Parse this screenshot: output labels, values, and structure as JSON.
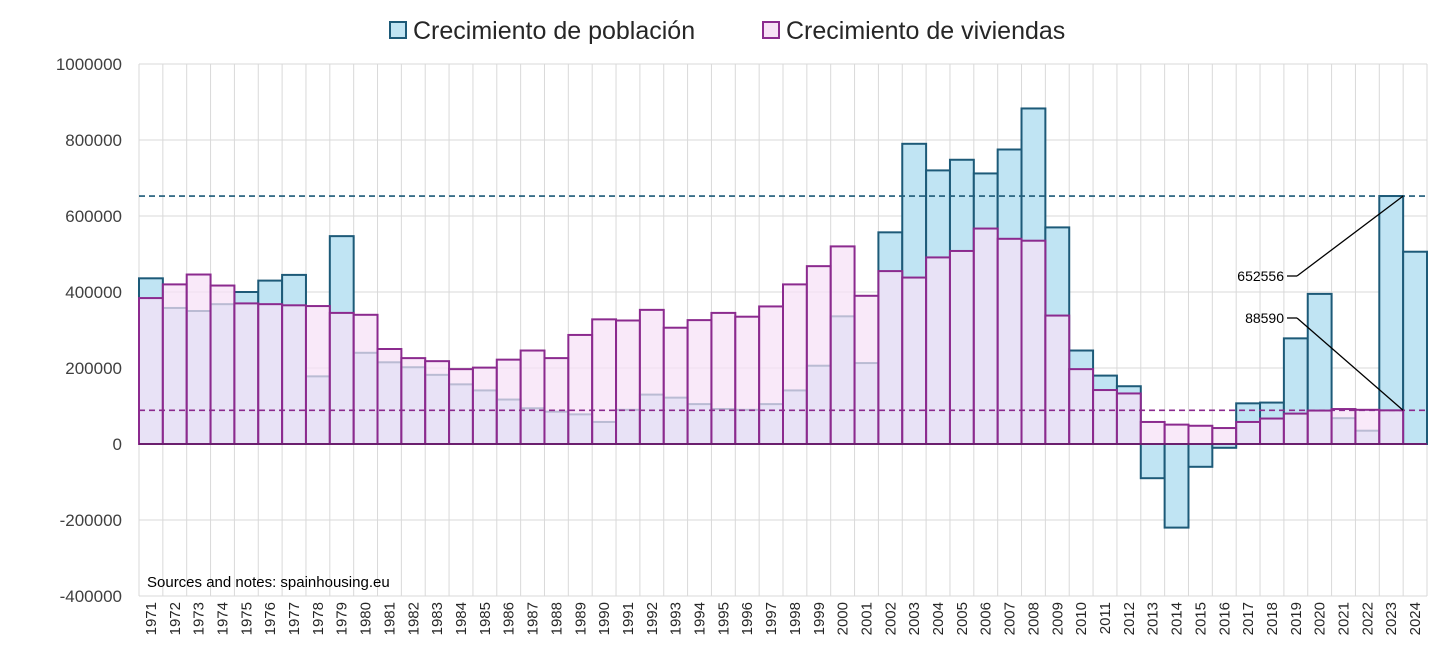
{
  "chart_data": {
    "type": "bar",
    "title": "",
    "xlabel": "",
    "ylabel": "",
    "ylim": [
      -400000,
      1000000
    ],
    "ytick_step": 200000,
    "grid": true,
    "legend_position": "top-center",
    "categories": [
      "1971",
      "1972",
      "1973",
      "1974",
      "1975",
      "1976",
      "1977",
      "1978",
      "1979",
      "1980",
      "1981",
      "1982",
      "1983",
      "1984",
      "1985",
      "1986",
      "1987",
      "1988",
      "1989",
      "1990",
      "1991",
      "1992",
      "1993",
      "1994",
      "1995",
      "1996",
      "1997",
      "1998",
      "1999",
      "2000",
      "2001",
      "2002",
      "2003",
      "2004",
      "2005",
      "2006",
      "2007",
      "2008",
      "2009",
      "2010",
      "2011",
      "2012",
      "2013",
      "2014",
      "2015",
      "2016",
      "2017",
      "2018",
      "2019",
      "2020",
      "2021",
      "2022",
      "2023",
      "2024"
    ],
    "series": [
      {
        "name": "Crecimiento de población",
        "fill": "#c0e4f3",
        "stroke": "#1d5a78",
        "values": [
          436000,
          358000,
          350000,
          368000,
          400000,
          430000,
          445000,
          178000,
          547000,
          240000,
          215000,
          202000,
          182000,
          157000,
          141000,
          117000,
          94000,
          85000,
          78000,
          58000,
          90000,
          130000,
          122000,
          105000,
          92000,
          90000,
          105000,
          141000,
          206000,
          336000,
          213000,
          557000,
          790000,
          720000,
          748000,
          712000,
          775000,
          883000,
          570000,
          246000,
          180000,
          152000,
          -90000,
          -220000,
          -60000,
          -10000,
          107000,
          109000,
          278000,
          395000,
          68000,
          35000,
          652556,
          506000
        ]
      },
      {
        "name": "Crecimiento de viviendas",
        "fill": "#f7e1f6",
        "stroke": "#8b2a8e",
        "values": [
          384000,
          420000,
          446000,
          417000,
          370000,
          368000,
          365000,
          363000,
          345000,
          340000,
          250000,
          226000,
          218000,
          197000,
          201000,
          222000,
          246000,
          226000,
          287000,
          328000,
          325000,
          353000,
          306000,
          326000,
          345000,
          335000,
          362000,
          420000,
          468000,
          520000,
          390000,
          455000,
          438000,
          491000,
          508000,
          567000,
          540000,
          535000,
          338000,
          197000,
          142000,
          133000,
          58000,
          51000,
          48000,
          42000,
          58000,
          67000,
          80000,
          88000,
          92000,
          90000,
          88590,
          null
        ]
      }
    ],
    "reference_lines": [
      {
        "value": 652556,
        "series": "Crecimiento de población",
        "color": "#1d5a78",
        "label": "652556"
      },
      {
        "value": 88590,
        "series": "Crecimiento de viviendas",
        "color": "#8b2a8e",
        "label": "88590"
      }
    ],
    "note": "Sources and notes: spainhousing.eu"
  }
}
